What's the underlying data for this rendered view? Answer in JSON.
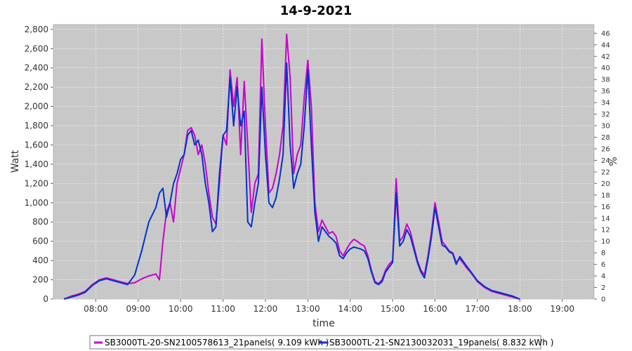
{
  "chart_data": {
    "type": "line",
    "title": "14-9-2021",
    "xlabel": "time",
    "ylabel": "Watt",
    "y2label": "%",
    "xlim": [
      "07:00",
      "19:45"
    ],
    "ylim": [
      0,
      2850
    ],
    "y2lim": [
      0,
      47.5
    ],
    "x_ticks": [
      "08:00",
      "09:00",
      "10:00",
      "11:00",
      "12:00",
      "13:00",
      "14:00",
      "15:00",
      "16:00",
      "17:00",
      "18:00",
      "19:00"
    ],
    "y_ticks": [
      "0",
      "200",
      "400",
      "600",
      "800",
      "1,000",
      "1,200",
      "1,400",
      "1,600",
      "1,800",
      "2,000",
      "2,200",
      "2,400",
      "2,600",
      "2,800"
    ],
    "y2_ticks": [
      "0",
      "2",
      "4",
      "6",
      "8",
      "10",
      "12",
      "14",
      "16",
      "18",
      "20",
      "22",
      "24",
      "26",
      "28",
      "30",
      "32",
      "34",
      "36",
      "38",
      "40",
      "42",
      "44",
      "46"
    ],
    "grid": true,
    "legend_position": "bottom",
    "background": "#c8c8c8",
    "series": [
      {
        "name": "SB3000TL-20-SN2100578613_21panels( 9.109 kWh )",
        "color": "#cc00cc",
        "points": [
          [
            "07:15",
            0
          ],
          [
            "07:25",
            30
          ],
          [
            "07:35",
            50
          ],
          [
            "07:45",
            80
          ],
          [
            "07:55",
            150
          ],
          [
            "08:05",
            200
          ],
          [
            "08:15",
            220
          ],
          [
            "08:25",
            200
          ],
          [
            "08:35",
            180
          ],
          [
            "08:45",
            160
          ],
          [
            "08:55",
            170
          ],
          [
            "09:05",
            210
          ],
          [
            "09:15",
            240
          ],
          [
            "09:25",
            260
          ],
          [
            "09:30",
            200
          ],
          [
            "09:35",
            600
          ],
          [
            "09:40",
            900
          ],
          [
            "09:45",
            1000
          ],
          [
            "09:50",
            800
          ],
          [
            "09:55",
            1200
          ],
          [
            "10:00",
            1350
          ],
          [
            "10:05",
            1500
          ],
          [
            "10:10",
            1750
          ],
          [
            "10:15",
            1780
          ],
          [
            "10:20",
            1700
          ],
          [
            "10:25",
            1500
          ],
          [
            "10:30",
            1600
          ],
          [
            "10:35",
            1400
          ],
          [
            "10:40",
            1100
          ],
          [
            "10:45",
            850
          ],
          [
            "10:50",
            780
          ],
          [
            "10:55",
            1200
          ],
          [
            "11:00",
            1700
          ],
          [
            "11:05",
            1600
          ],
          [
            "11:10",
            2380
          ],
          [
            "11:15",
            2000
          ],
          [
            "11:20",
            2300
          ],
          [
            "11:25",
            1500
          ],
          [
            "11:30",
            2260
          ],
          [
            "11:35",
            1600
          ],
          [
            "11:40",
            900
          ],
          [
            "11:45",
            1200
          ],
          [
            "11:50",
            1300
          ],
          [
            "11:55",
            2700
          ],
          [
            "12:00",
            1800
          ],
          [
            "12:05",
            1100
          ],
          [
            "12:10",
            1150
          ],
          [
            "12:15",
            1300
          ],
          [
            "12:20",
            1500
          ],
          [
            "12:25",
            1800
          ],
          [
            "12:30",
            2750
          ],
          [
            "12:35",
            2300
          ],
          [
            "12:40",
            1300
          ],
          [
            "12:45",
            1500
          ],
          [
            "12:50",
            1600
          ],
          [
            "12:55",
            2100
          ],
          [
            "13:00",
            2480
          ],
          [
            "13:05",
            2000
          ],
          [
            "13:10",
            1000
          ],
          [
            "13:15",
            700
          ],
          [
            "13:20",
            820
          ],
          [
            "13:25",
            750
          ],
          [
            "13:30",
            680
          ],
          [
            "13:35",
            700
          ],
          [
            "13:40",
            650
          ],
          [
            "13:45",
            500
          ],
          [
            "13:50",
            450
          ],
          [
            "13:55",
            520
          ],
          [
            "14:00",
            580
          ],
          [
            "14:05",
            620
          ],
          [
            "14:10",
            600
          ],
          [
            "14:15",
            570
          ],
          [
            "14:20",
            550
          ],
          [
            "14:25",
            450
          ],
          [
            "14:30",
            300
          ],
          [
            "14:35",
            180
          ],
          [
            "14:40",
            160
          ],
          [
            "14:45",
            200
          ],
          [
            "14:50",
            300
          ],
          [
            "14:55",
            360
          ],
          [
            "15:00",
            400
          ],
          [
            "15:05",
            1250
          ],
          [
            "15:10",
            600
          ],
          [
            "15:15",
            650
          ],
          [
            "15:20",
            780
          ],
          [
            "15:25",
            700
          ],
          [
            "15:30",
            550
          ],
          [
            "15:35",
            400
          ],
          [
            "15:40",
            300
          ],
          [
            "15:45",
            250
          ],
          [
            "15:50",
            450
          ],
          [
            "15:55",
            700
          ],
          [
            "16:00",
            1000
          ],
          [
            "16:05",
            800
          ],
          [
            "16:10",
            600
          ],
          [
            "16:15",
            550
          ],
          [
            "16:20",
            500
          ],
          [
            "16:25",
            480
          ],
          [
            "16:30",
            380
          ],
          [
            "16:35",
            420
          ],
          [
            "16:40",
            370
          ],
          [
            "16:45",
            320
          ],
          [
            "16:50",
            280
          ],
          [
            "16:55",
            230
          ],
          [
            "17:00",
            180
          ],
          [
            "17:10",
            120
          ],
          [
            "17:20",
            80
          ],
          [
            "17:30",
            60
          ],
          [
            "17:40",
            40
          ],
          [
            "17:50",
            20
          ],
          [
            "18:00",
            0
          ]
        ]
      },
      {
        "name": "SB3000TL-21-SN2130032031_19panels( 8.832 kWh )",
        "color": "#0033cc",
        "points": [
          [
            "07:15",
            0
          ],
          [
            "07:25",
            20
          ],
          [
            "07:35",
            40
          ],
          [
            "07:45",
            70
          ],
          [
            "07:55",
            140
          ],
          [
            "08:05",
            190
          ],
          [
            "08:15",
            210
          ],
          [
            "08:25",
            190
          ],
          [
            "08:35",
            170
          ],
          [
            "08:45",
            150
          ],
          [
            "08:55",
            250
          ],
          [
            "09:05",
            500
          ],
          [
            "09:15",
            800
          ],
          [
            "09:25",
            950
          ],
          [
            "09:30",
            1100
          ],
          [
            "09:35",
            1150
          ],
          [
            "09:40",
            850
          ],
          [
            "09:45",
            1000
          ],
          [
            "09:50",
            1200
          ],
          [
            "09:55",
            1300
          ],
          [
            "10:00",
            1450
          ],
          [
            "10:05",
            1500
          ],
          [
            "10:10",
            1700
          ],
          [
            "10:15",
            1750
          ],
          [
            "10:20",
            1600
          ],
          [
            "10:25",
            1650
          ],
          [
            "10:30",
            1500
          ],
          [
            "10:35",
            1200
          ],
          [
            "10:40",
            1000
          ],
          [
            "10:45",
            700
          ],
          [
            "10:50",
            750
          ],
          [
            "10:55",
            1300
          ],
          [
            "11:00",
            1700
          ],
          [
            "11:05",
            1750
          ],
          [
            "11:10",
            2300
          ],
          [
            "11:15",
            1800
          ],
          [
            "11:20",
            2200
          ],
          [
            "11:25",
            1800
          ],
          [
            "11:30",
            1950
          ],
          [
            "11:35",
            800
          ],
          [
            "11:40",
            750
          ],
          [
            "11:45",
            1000
          ],
          [
            "11:50",
            1200
          ],
          [
            "11:55",
            2200
          ],
          [
            "12:00",
            1500
          ],
          [
            "12:05",
            1000
          ],
          [
            "12:10",
            950
          ],
          [
            "12:15",
            1050
          ],
          [
            "12:20",
            1250
          ],
          [
            "12:25",
            1500
          ],
          [
            "12:30",
            2450
          ],
          [
            "12:35",
            1600
          ],
          [
            "12:40",
            1150
          ],
          [
            "12:45",
            1300
          ],
          [
            "12:50",
            1400
          ],
          [
            "12:55",
            1800
          ],
          [
            "13:00",
            2380
          ],
          [
            "13:05",
            1600
          ],
          [
            "13:10",
            900
          ],
          [
            "13:15",
            600
          ],
          [
            "13:20",
            750
          ],
          [
            "13:25",
            700
          ],
          [
            "13:30",
            650
          ],
          [
            "13:35",
            620
          ],
          [
            "13:40",
            580
          ],
          [
            "13:45",
            450
          ],
          [
            "13:50",
            420
          ],
          [
            "13:55",
            480
          ],
          [
            "14:00",
            520
          ],
          [
            "14:05",
            540
          ],
          [
            "14:10",
            530
          ],
          [
            "14:15",
            520
          ],
          [
            "14:20",
            500
          ],
          [
            "14:25",
            420
          ],
          [
            "14:30",
            280
          ],
          [
            "14:35",
            170
          ],
          [
            "14:40",
            150
          ],
          [
            "14:45",
            180
          ],
          [
            "14:50",
            280
          ],
          [
            "14:55",
            330
          ],
          [
            "15:00",
            380
          ],
          [
            "15:05",
            1100
          ],
          [
            "15:10",
            550
          ],
          [
            "15:15",
            600
          ],
          [
            "15:20",
            720
          ],
          [
            "15:25",
            650
          ],
          [
            "15:30",
            520
          ],
          [
            "15:35",
            380
          ],
          [
            "15:40",
            280
          ],
          [
            "15:45",
            220
          ],
          [
            "15:50",
            420
          ],
          [
            "15:55",
            650
          ],
          [
            "16:00",
            950
          ],
          [
            "16:05",
            750
          ],
          [
            "16:10",
            560
          ],
          [
            "16:15",
            540
          ],
          [
            "16:20",
            490
          ],
          [
            "16:25",
            470
          ],
          [
            "16:30",
            360
          ],
          [
            "16:35",
            440
          ],
          [
            "16:40",
            390
          ],
          [
            "16:45",
            340
          ],
          [
            "16:50",
            290
          ],
          [
            "16:55",
            240
          ],
          [
            "17:00",
            190
          ],
          [
            "17:10",
            130
          ],
          [
            "17:20",
            90
          ],
          [
            "17:30",
            70
          ],
          [
            "17:40",
            50
          ],
          [
            "17:50",
            30
          ],
          [
            "18:00",
            0
          ]
        ]
      }
    ]
  }
}
